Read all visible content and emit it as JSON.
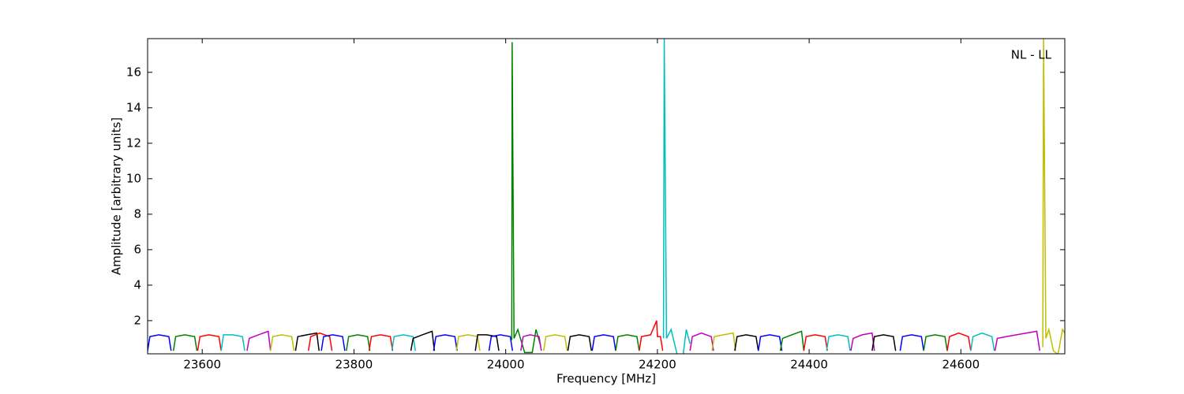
{
  "chart_data": {
    "type": "line",
    "annotation": "NL - LL",
    "x_label": "Frequency [MHz]",
    "y_label": "Amplitude [arbitrary units]",
    "xlim": [
      23528,
      24737
    ],
    "ylim": [
      0.13,
      17.9
    ],
    "xticks": [
      23600,
      23800,
      24000,
      24200,
      24400,
      24600
    ],
    "yticks": [
      2,
      4,
      6,
      8,
      10,
      12,
      14,
      16
    ],
    "series": [
      {
        "color": "#0000ff",
        "x": [
          23528,
          23531,
          23543,
          23556,
          23559
        ],
        "values": [
          0.3,
          1.1,
          1.2,
          1.1,
          0.3
        ]
      },
      {
        "color": "#008000",
        "x": [
          23562,
          23565,
          23577,
          23590,
          23593
        ],
        "values": [
          0.3,
          1.1,
          1.2,
          1.1,
          0.3
        ]
      },
      {
        "color": "#ff0000",
        "x": [
          23594,
          23597,
          23609,
          23622,
          23625
        ],
        "values": [
          0.3,
          1.1,
          1.2,
          1.1,
          0.3
        ]
      },
      {
        "color": "#00bfbf",
        "x": [
          23625,
          23628,
          23640,
          23653,
          23656
        ],
        "values": [
          0.3,
          1.2,
          1.2,
          1.1,
          0.3
        ]
      },
      {
        "color": "#bf00bf",
        "x": [
          23659,
          23662,
          23674,
          23687,
          23690
        ],
        "values": [
          0.3,
          1.0,
          1.2,
          1.4,
          0.3
        ]
      },
      {
        "color": "#bfbf00",
        "x": [
          23690,
          23693,
          23705,
          23718,
          23721
        ],
        "values": [
          0.3,
          1.1,
          1.2,
          1.1,
          0.3
        ]
      },
      {
        "color": "#000000",
        "x": [
          23723,
          23726,
          23738,
          23751,
          23754
        ],
        "values": [
          0.3,
          1.1,
          1.2,
          1.3,
          0.3
        ]
      },
      {
        "color": "#ff0000",
        "x": [
          23740,
          23743,
          23755,
          23768,
          23771
        ],
        "values": [
          0.3,
          1.1,
          1.3,
          1.1,
          0.3
        ]
      },
      {
        "color": "#0000ff",
        "x": [
          23757,
          23760,
          23772,
          23785,
          23788
        ],
        "values": [
          0.3,
          1.1,
          1.2,
          1.1,
          0.3
        ]
      },
      {
        "color": "#008000",
        "x": [
          23790,
          23793,
          23805,
          23818,
          23821
        ],
        "values": [
          0.3,
          1.1,
          1.2,
          1.1,
          0.3
        ]
      },
      {
        "color": "#ff0000",
        "x": [
          23820,
          23823,
          23835,
          23848,
          23851
        ],
        "values": [
          0.3,
          1.1,
          1.2,
          1.1,
          0.3
        ]
      },
      {
        "color": "#00bfbf",
        "x": [
          23850,
          23853,
          23865,
          23878,
          23881
        ],
        "values": [
          0.3,
          1.1,
          1.2,
          1.1,
          0.3
        ]
      },
      {
        "color": "#000000",
        "x": [
          23875,
          23878,
          23890,
          23903,
          23906
        ],
        "values": [
          0.3,
          1.0,
          1.2,
          1.4,
          0.3
        ]
      },
      {
        "color": "#0000ff",
        "x": [
          23905,
          23908,
          23920,
          23933,
          23936
        ],
        "values": [
          0.3,
          1.1,
          1.2,
          1.1,
          0.3
        ]
      },
      {
        "color": "#bfbf00",
        "x": [
          23935,
          23938,
          23950,
          23963,
          23966
        ],
        "values": [
          0.3,
          1.1,
          1.2,
          1.1,
          0.3
        ]
      },
      {
        "color": "#000000",
        "x": [
          23960,
          23963,
          23975,
          23988,
          23991
        ],
        "values": [
          0.3,
          1.2,
          1.2,
          1.1,
          0.3
        ]
      },
      {
        "color": "#0000ff",
        "x": [
          23978,
          23981,
          23993,
          24006,
          24009
        ],
        "values": [
          0.3,
          1.1,
          1.2,
          1.1,
          0.3
        ]
      },
      {
        "color": "#008000",
        "x": [
          24008,
          24008.5,
          24011,
          24016,
          24025,
          24035,
          24040,
          24046
        ],
        "values": [
          0.9,
          17.7,
          1.0,
          1.5,
          0.2,
          0.2,
          1.5,
          0.6
        ]
      },
      {
        "color": "#bf00bf",
        "x": [
          24020,
          24023,
          24032,
          24044,
          24047
        ],
        "values": [
          0.3,
          1.1,
          1.2,
          1.1,
          0.3
        ]
      },
      {
        "color": "#bfbf00",
        "x": [
          24050,
          24053,
          24065,
          24078,
          24081
        ],
        "values": [
          0.3,
          1.1,
          1.2,
          1.1,
          0.3
        ]
      },
      {
        "color": "#000000",
        "x": [
          24082,
          24085,
          24097,
          24110,
          24113
        ],
        "values": [
          0.3,
          1.1,
          1.2,
          1.1,
          0.3
        ]
      },
      {
        "color": "#0000ff",
        "x": [
          24114,
          24117,
          24129,
          24142,
          24145
        ],
        "values": [
          0.3,
          1.1,
          1.2,
          1.1,
          0.3
        ]
      },
      {
        "color": "#008000",
        "x": [
          24145,
          24148,
          24160,
          24173,
          24176
        ],
        "values": [
          0.3,
          1.1,
          1.2,
          1.1,
          0.3
        ]
      },
      {
        "color": "#ff0000",
        "x": [
          24176,
          24179,
          24191,
          24199,
          24200,
          24204,
          24207
        ],
        "values": [
          0.3,
          1.1,
          1.2,
          2.0,
          1.1,
          1.1,
          0.3
        ]
      },
      {
        "color": "#00bfbf",
        "x": [
          24208,
          24209,
          24212,
          24218,
          24226,
          24234,
          24238,
          24243
        ],
        "values": [
          1.0,
          17.9,
          1.0,
          1.5,
          0.1,
          0.1,
          1.5,
          0.7
        ]
      },
      {
        "color": "#bf00bf",
        "x": [
          24243,
          24246,
          24258,
          24271,
          24274
        ],
        "values": [
          0.3,
          1.1,
          1.3,
          1.1,
          0.3
        ]
      },
      {
        "color": "#bfbf00",
        "x": [
          24272,
          24275,
          24287,
          24300,
          24303
        ],
        "values": [
          0.3,
          1.1,
          1.2,
          1.3,
          0.3
        ]
      },
      {
        "color": "#000000",
        "x": [
          24302,
          24305,
          24317,
          24330,
          24333
        ],
        "values": [
          0.3,
          1.1,
          1.2,
          1.1,
          0.3
        ]
      },
      {
        "color": "#0000ff",
        "x": [
          24333,
          24336,
          24348,
          24361,
          24364
        ],
        "values": [
          0.3,
          1.1,
          1.2,
          1.1,
          0.3
        ]
      },
      {
        "color": "#008000",
        "x": [
          24362,
          24365,
          24377,
          24390,
          24393
        ],
        "values": [
          0.3,
          1.0,
          1.2,
          1.4,
          0.3
        ]
      },
      {
        "color": "#ff0000",
        "x": [
          24393,
          24396,
          24408,
          24421,
          24424
        ],
        "values": [
          0.3,
          1.1,
          1.2,
          1.1,
          0.3
        ]
      },
      {
        "color": "#00bfbf",
        "x": [
          24423,
          24426,
          24438,
          24451,
          24454
        ],
        "values": [
          0.3,
          1.1,
          1.2,
          1.1,
          0.3
        ]
      },
      {
        "color": "#bf00bf",
        "x": [
          24455,
          24458,
          24470,
          24483,
          24486
        ],
        "values": [
          0.3,
          1.0,
          1.2,
          1.3,
          0.3
        ]
      },
      {
        "color": "#000000",
        "x": [
          24483,
          24486,
          24498,
          24511,
          24514
        ],
        "values": [
          0.3,
          1.1,
          1.2,
          1.1,
          0.3
        ]
      },
      {
        "color": "#0000ff",
        "x": [
          24520,
          24523,
          24535,
          24548,
          24551
        ],
        "values": [
          0.3,
          1.1,
          1.2,
          1.1,
          0.3
        ]
      },
      {
        "color": "#008000",
        "x": [
          24551,
          24554,
          24566,
          24579,
          24582
        ],
        "values": [
          0.3,
          1.1,
          1.2,
          1.1,
          0.3
        ]
      },
      {
        "color": "#ff0000",
        "x": [
          24582,
          24585,
          24597,
          24610,
          24613
        ],
        "values": [
          0.3,
          1.1,
          1.3,
          1.1,
          0.3
        ]
      },
      {
        "color": "#00bfbf",
        "x": [
          24613,
          24616,
          24628,
          24641,
          24644
        ],
        "values": [
          0.3,
          1.1,
          1.3,
          1.1,
          0.3
        ]
      },
      {
        "color": "#bf00bf",
        "x": [
          24645,
          24648,
          24660,
          24700,
          24704
        ],
        "values": [
          0.3,
          1.0,
          1.1,
          1.4,
          0.3
        ]
      },
      {
        "color": "#bfbf00",
        "x": [
          24708,
          24709,
          24712,
          24716,
          24722,
          24728,
          24734,
          24737
        ],
        "values": [
          0.5,
          17.9,
          1.0,
          1.5,
          0.3,
          0.1,
          1.5,
          1.3
        ]
      }
    ]
  }
}
